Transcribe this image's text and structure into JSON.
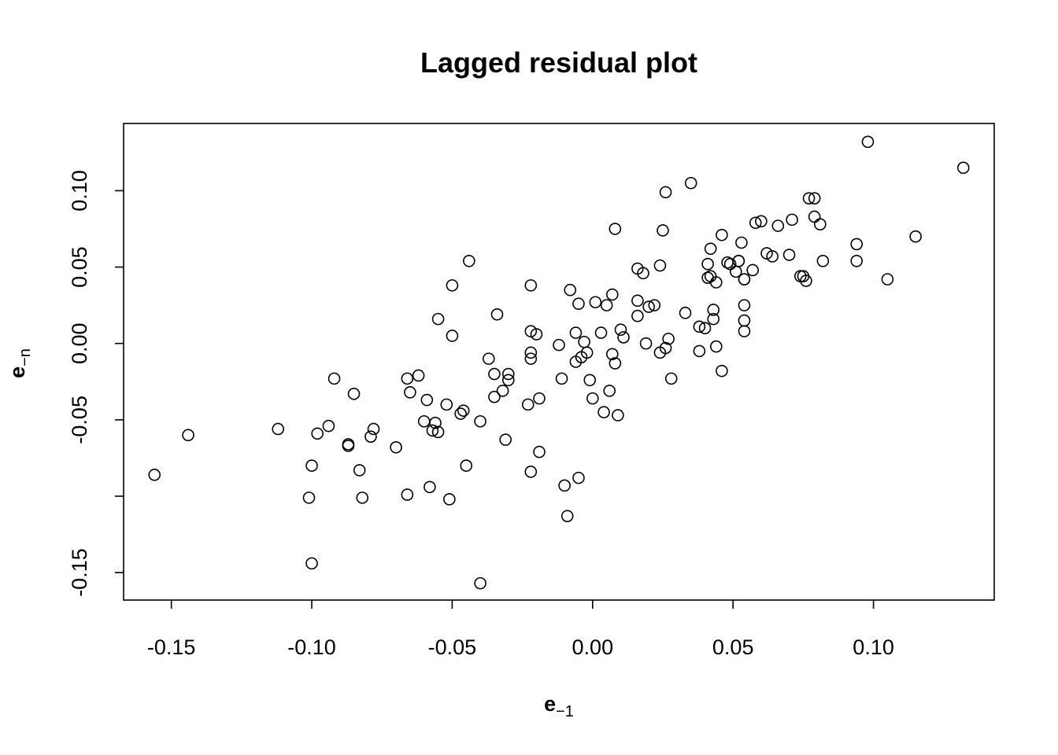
{
  "chart_data": {
    "type": "scatter",
    "title": "Lagged residual plot",
    "xlabel": {
      "main": "e",
      "sub": "−1"
    },
    "ylabel": {
      "main": "e",
      "sub": "−n"
    },
    "xlim": [
      -0.167,
      0.143
    ],
    "ylim": [
      -0.168,
      0.144
    ],
    "grid": false,
    "legend": "none",
    "x_ticks": [
      {
        "value": -0.15,
        "label": "-0.15"
      },
      {
        "value": -0.1,
        "label": "-0.10"
      },
      {
        "value": -0.05,
        "label": "-0.05"
      },
      {
        "value": 0.0,
        "label": "0.00"
      },
      {
        "value": 0.05,
        "label": "0.05"
      },
      {
        "value": 0.1,
        "label": "0.10"
      }
    ],
    "y_ticks": [
      {
        "value": -0.15,
        "label": "-0.15"
      },
      {
        "value": -0.1,
        "label": ""
      },
      {
        "value": -0.05,
        "label": "-0.05"
      },
      {
        "value": 0.0,
        "label": "0.00"
      },
      {
        "value": 0.05,
        "label": "0.05"
      },
      {
        "value": 0.1,
        "label": "0.10"
      }
    ],
    "points": [
      [
        -0.156,
        -0.086
      ],
      [
        -0.144,
        -0.06
      ],
      [
        -0.112,
        -0.056
      ],
      [
        -0.101,
        -0.101
      ],
      [
        -0.1,
        -0.144
      ],
      [
        -0.1,
        -0.08
      ],
      [
        -0.098,
        -0.059
      ],
      [
        -0.094,
        -0.054
      ],
      [
        -0.092,
        -0.023
      ],
      [
        -0.087,
        -0.066
      ],
      [
        -0.087,
        -0.067
      ],
      [
        -0.085,
        -0.033
      ],
      [
        -0.083,
        -0.083
      ],
      [
        -0.082,
        -0.101
      ],
      [
        -0.079,
        -0.061
      ],
      [
        -0.078,
        -0.056
      ],
      [
        -0.07,
        -0.068
      ],
      [
        -0.066,
        -0.099
      ],
      [
        -0.066,
        -0.023
      ],
      [
        -0.065,
        -0.032
      ],
      [
        -0.062,
        -0.021
      ],
      [
        -0.06,
        -0.051
      ],
      [
        -0.059,
        -0.037
      ],
      [
        -0.058,
        -0.094
      ],
      [
        -0.057,
        -0.057
      ],
      [
        -0.056,
        -0.052
      ],
      [
        -0.055,
        -0.058
      ],
      [
        -0.055,
        0.016
      ],
      [
        -0.052,
        -0.04
      ],
      [
        -0.051,
        -0.102
      ],
      [
        -0.05,
        0.005
      ],
      [
        -0.05,
        0.038
      ],
      [
        -0.047,
        -0.046
      ],
      [
        -0.046,
        -0.044
      ],
      [
        -0.045,
        -0.08
      ],
      [
        -0.044,
        0.054
      ],
      [
        -0.04,
        -0.051
      ],
      [
        -0.04,
        -0.157
      ],
      [
        -0.037,
        -0.01
      ],
      [
        -0.035,
        -0.035
      ],
      [
        -0.035,
        -0.02
      ],
      [
        -0.034,
        0.019
      ],
      [
        -0.032,
        -0.031
      ],
      [
        -0.031,
        -0.063
      ],
      [
        -0.03,
        -0.02
      ],
      [
        -0.03,
        -0.024
      ],
      [
        -0.023,
        -0.04
      ],
      [
        -0.022,
        -0.006
      ],
      [
        -0.022,
        -0.01
      ],
      [
        -0.022,
        0.038
      ],
      [
        -0.022,
        0.008
      ],
      [
        -0.022,
        -0.084
      ],
      [
        -0.02,
        0.006
      ],
      [
        -0.019,
        -0.071
      ],
      [
        -0.019,
        -0.036
      ],
      [
        -0.012,
        -0.001
      ],
      [
        -0.011,
        -0.023
      ],
      [
        -0.01,
        -0.093
      ],
      [
        -0.009,
        -0.113
      ],
      [
        -0.008,
        0.035
      ],
      [
        -0.006,
        0.007
      ],
      [
        -0.006,
        -0.012
      ],
      [
        -0.005,
        0.026
      ],
      [
        -0.005,
        -0.088
      ],
      [
        -0.004,
        -0.009
      ],
      [
        -0.003,
        0.001
      ],
      [
        -0.002,
        -0.006
      ],
      [
        -0.001,
        -0.024
      ],
      [
        0.0,
        -0.036
      ],
      [
        0.001,
        0.027
      ],
      [
        0.003,
        0.007
      ],
      [
        0.004,
        -0.045
      ],
      [
        0.005,
        0.025
      ],
      [
        0.006,
        -0.031
      ],
      [
        0.007,
        -0.007
      ],
      [
        0.007,
        0.032
      ],
      [
        0.008,
        0.075
      ],
      [
        0.008,
        -0.013
      ],
      [
        0.009,
        -0.047
      ],
      [
        0.01,
        0.009
      ],
      [
        0.011,
        0.004
      ],
      [
        0.016,
        0.049
      ],
      [
        0.016,
        0.028
      ],
      [
        0.016,
        0.018
      ],
      [
        0.018,
        0.046
      ],
      [
        0.019,
        0.0
      ],
      [
        0.02,
        0.024
      ],
      [
        0.022,
        0.025
      ],
      [
        0.024,
        0.051
      ],
      [
        0.024,
        -0.006
      ],
      [
        0.025,
        0.074
      ],
      [
        0.026,
        0.099
      ],
      [
        0.026,
        -0.003
      ],
      [
        0.027,
        0.003
      ],
      [
        0.028,
        -0.023
      ],
      [
        0.033,
        0.02
      ],
      [
        0.035,
        0.105
      ],
      [
        0.038,
        -0.005
      ],
      [
        0.038,
        0.011
      ],
      [
        0.04,
        0.01
      ],
      [
        0.041,
        0.052
      ],
      [
        0.041,
        0.043
      ],
      [
        0.042,
        0.062
      ],
      [
        0.042,
        0.044
      ],
      [
        0.043,
        0.016
      ],
      [
        0.043,
        0.022
      ],
      [
        0.044,
        0.04
      ],
      [
        0.044,
        -0.002
      ],
      [
        0.046,
        -0.018
      ],
      [
        0.046,
        0.071
      ],
      [
        0.048,
        0.053
      ],
      [
        0.049,
        0.052
      ],
      [
        0.051,
        0.047
      ],
      [
        0.052,
        0.054
      ],
      [
        0.052,
        0.054
      ],
      [
        0.053,
        0.066
      ],
      [
        0.054,
        0.025
      ],
      [
        0.054,
        0.042
      ],
      [
        0.054,
        0.015
      ],
      [
        0.054,
        0.042
      ],
      [
        0.054,
        0.008
      ],
      [
        0.057,
        0.048
      ],
      [
        0.058,
        0.079
      ],
      [
        0.06,
        0.08
      ],
      [
        0.062,
        0.059
      ],
      [
        0.064,
        0.057
      ],
      [
        0.066,
        0.077
      ],
      [
        0.07,
        0.058
      ],
      [
        0.071,
        0.081
      ],
      [
        0.074,
        0.044
      ],
      [
        0.075,
        0.044
      ],
      [
        0.076,
        0.041
      ],
      [
        0.077,
        0.095
      ],
      [
        0.079,
        0.083
      ],
      [
        0.079,
        0.095
      ],
      [
        0.081,
        0.078
      ],
      [
        0.082,
        0.054
      ],
      [
        0.094,
        0.054
      ],
      [
        0.094,
        0.065
      ],
      [
        0.098,
        0.132
      ],
      [
        0.105,
        0.042
      ],
      [
        0.115,
        0.07
      ],
      [
        0.132,
        0.115
      ]
    ]
  }
}
